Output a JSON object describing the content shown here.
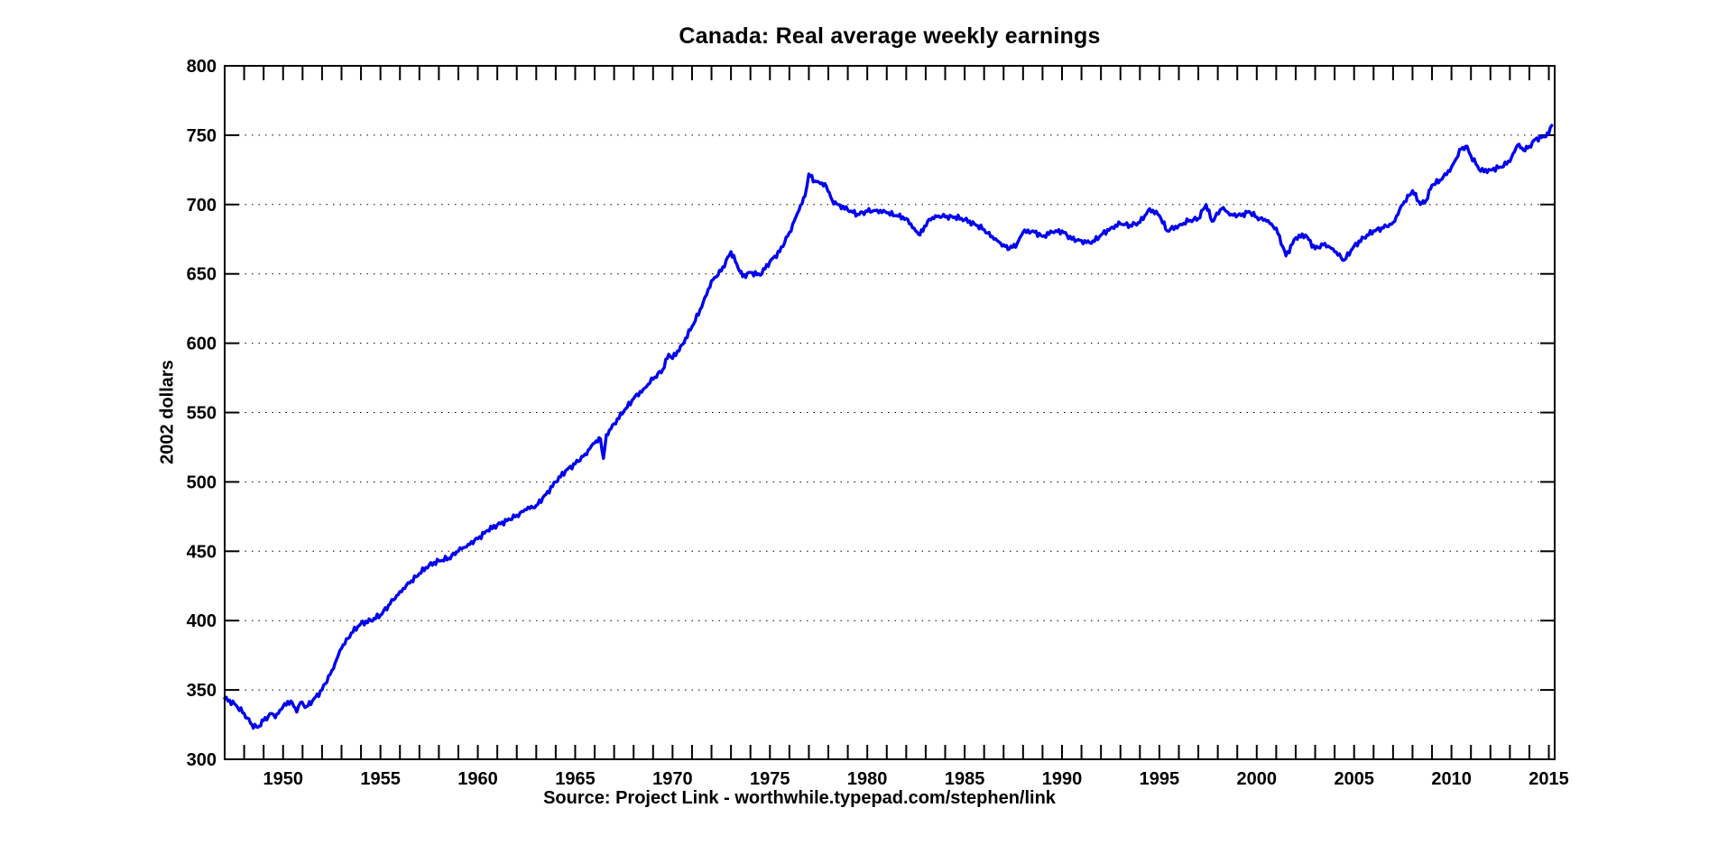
{
  "chart_data": {
    "type": "line",
    "title": "Canada: Real average weekly earnings",
    "ylabel": "2002 dollars",
    "xlabel": "Source: Project Link - worthwhile.typepad.com/stephen/link",
    "series_name": "Real average weekly earnings (2002 dollars)",
    "line_color": "#0000EE",
    "grid": "horizontal-dotted",
    "legend_position": "none",
    "xlim": [
      1947,
      2015.3
    ],
    "ylim": [
      300,
      800
    ],
    "y_ticks": [
      {
        "value": 300,
        "label": "300"
      },
      {
        "value": 350,
        "label": "350"
      },
      {
        "value": 400,
        "label": "400"
      },
      {
        "value": 450,
        "label": "450"
      },
      {
        "value": 500,
        "label": "500"
      },
      {
        "value": 550,
        "label": "550"
      },
      {
        "value": 600,
        "label": "600"
      },
      {
        "value": 650,
        "label": "650"
      },
      {
        "value": 700,
        "label": "700"
      },
      {
        "value": 750,
        "label": "750"
      },
      {
        "value": 800,
        "label": "800"
      }
    ],
    "x_major_ticks": [
      {
        "value": 1950,
        "label": "1950"
      },
      {
        "value": 1955,
        "label": "1955"
      },
      {
        "value": 1960,
        "label": "1960"
      },
      {
        "value": 1965,
        "label": "1965"
      },
      {
        "value": 1970,
        "label": "1970"
      },
      {
        "value": 1975,
        "label": "1975"
      },
      {
        "value": 1980,
        "label": "1980"
      },
      {
        "value": 1985,
        "label": "1985"
      },
      {
        "value": 1990,
        "label": "1990"
      },
      {
        "value": 1995,
        "label": "1995"
      },
      {
        "value": 2000,
        "label": "2000"
      },
      {
        "value": 2005,
        "label": "2005"
      },
      {
        "value": 2010,
        "label": "2010"
      },
      {
        "value": 2015,
        "label": "2015"
      }
    ],
    "x_minor_tick_start": 1947,
    "x_minor_tick_end": 2015,
    "x_minor_tick_step": 1,
    "x": [
      1947.0,
      1947.5,
      1948.0,
      1948.4,
      1948.7,
      1949.0,
      1949.4,
      1949.6,
      1950.0,
      1950.4,
      1950.7,
      1950.9,
      1951.2,
      1951.5,
      1952.0,
      1952.5,
      1953.0,
      1953.5,
      1954.0,
      1954.5,
      1955.0,
      1955.5,
      1956.0,
      1956.5,
      1957.0,
      1957.5,
      1958.0,
      1958.5,
      1959.0,
      1959.5,
      1960.0,
      1960.5,
      1961.0,
      1961.5,
      1962.0,
      1962.5,
      1963.0,
      1963.5,
      1964.0,
      1964.5,
      1965.0,
      1965.5,
      1966.0,
      1966.3,
      1966.45,
      1966.6,
      1967.0,
      1967.5,
      1968.0,
      1968.5,
      1969.0,
      1969.5,
      1969.8,
      1970.0,
      1970.5,
      1971.0,
      1971.5,
      1972.0,
      1972.5,
      1973.0,
      1973.3,
      1973.6,
      1974.0,
      1974.5,
      1975.0,
      1975.5,
      1976.0,
      1976.5,
      1976.8,
      1977.0,
      1977.3,
      1977.6,
      1977.9,
      1978.2,
      1978.5,
      1979.0,
      1979.5,
      1980.0,
      1980.5,
      1981.0,
      1981.5,
      1982.0,
      1982.4,
      1982.7,
      1983.1,
      1983.5,
      1984.0,
      1984.5,
      1985.0,
      1985.5,
      1986.0,
      1986.5,
      1987.0,
      1987.3,
      1987.7,
      1988.0,
      1988.5,
      1989.0,
      1989.5,
      1990.0,
      1990.5,
      1991.0,
      1991.5,
      1992.0,
      1992.5,
      1993.0,
      1993.5,
      1994.0,
      1994.5,
      1995.0,
      1995.4,
      1996.0,
      1996.5,
      1997.0,
      1997.4,
      1997.7,
      1998.2,
      1998.7,
      1999.2,
      1999.6,
      2000.0,
      2000.5,
      2001.0,
      2001.5,
      2002.0,
      2002.5,
      2003.0,
      2003.5,
      2004.0,
      2004.5,
      2005.0,
      2005.5,
      2006.0,
      2006.5,
      2007.0,
      2007.5,
      2008.0,
      2008.4,
      2008.7,
      2009.0,
      2009.5,
      2010.0,
      2010.5,
      2010.8,
      2011.0,
      2011.5,
      2012.0,
      2012.5,
      2013.0,
      2013.4,
      2013.7,
      2014.0,
      2014.3,
      2014.7,
      2015.0,
      2015.15
    ],
    "y": [
      344,
      340,
      333,
      325,
      323,
      328,
      333,
      330,
      338,
      342,
      334,
      341,
      338,
      342,
      350,
      364,
      380,
      391,
      398,
      400,
      404,
      412,
      421,
      427,
      434,
      440,
      443,
      445,
      450,
      455,
      459,
      465,
      469,
      472,
      476,
      480,
      483,
      491,
      500,
      508,
      513,
      520,
      528,
      531,
      517,
      534,
      542,
      551,
      560,
      567,
      574,
      581,
      592,
      589,
      599,
      612,
      626,
      645,
      652,
      666,
      657,
      648,
      651,
      649,
      659,
      666,
      680,
      696,
      706,
      722,
      717,
      715,
      713,
      703,
      700,
      696,
      693,
      695,
      696,
      694,
      692,
      690,
      683,
      678,
      688,
      692,
      691,
      691,
      689,
      686,
      682,
      675,
      671,
      668,
      672,
      680,
      681,
      677,
      680,
      681,
      675,
      674,
      672,
      678,
      683,
      686,
      685,
      687,
      697,
      692,
      681,
      685,
      688,
      690,
      700,
      688,
      697,
      693,
      692,
      695,
      691,
      688,
      683,
      663,
      676,
      678,
      668,
      672,
      666,
      660,
      670,
      676,
      681,
      683,
      687,
      700,
      710,
      700,
      703,
      714,
      718,
      727,
      740,
      742,
      735,
      724,
      725,
      727,
      731,
      743,
      739,
      742,
      747,
      749,
      751,
      757
    ]
  }
}
